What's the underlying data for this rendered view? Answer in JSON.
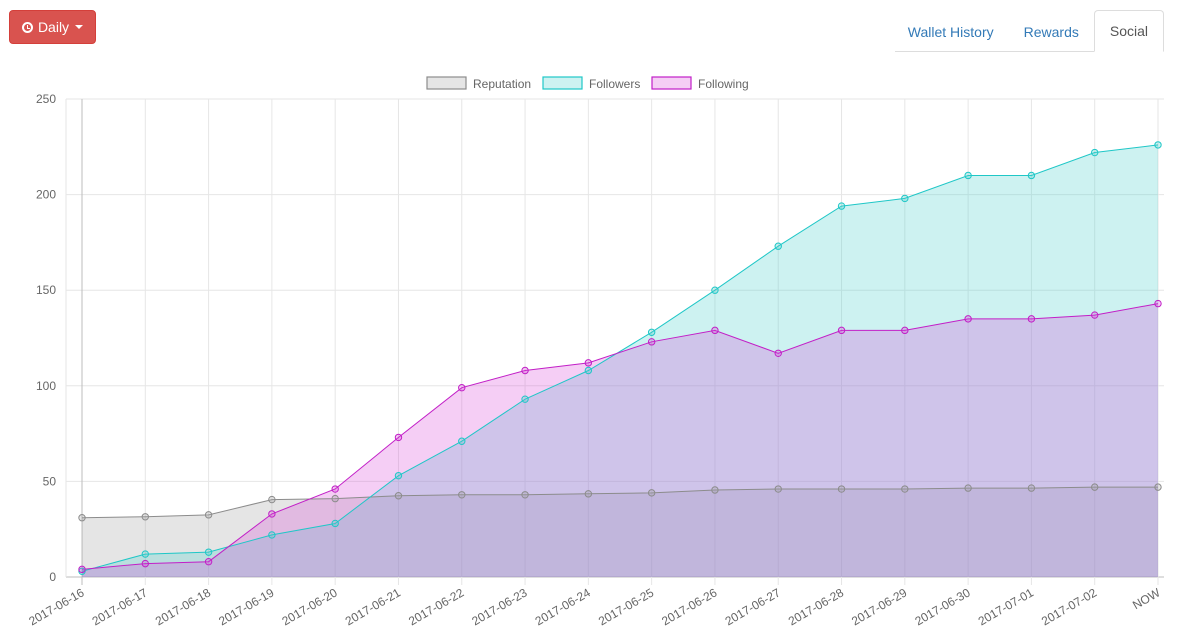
{
  "controls": {
    "period_label": "Daily",
    "period_icon": "clock-icon",
    "tabs": [
      {
        "label": "Wallet History",
        "active": false
      },
      {
        "label": "Rewards",
        "active": false
      },
      {
        "label": "Social",
        "active": true
      }
    ]
  },
  "chart_data": {
    "type": "area",
    "categories": [
      "2017-06-16",
      "2017-06-17",
      "2017-06-18",
      "2017-06-19",
      "2017-06-20",
      "2017-06-21",
      "2017-06-22",
      "2017-06-23",
      "2017-06-24",
      "2017-06-25",
      "2017-06-26",
      "2017-06-27",
      "2017-06-28",
      "2017-06-29",
      "2017-06-30",
      "2017-07-01",
      "2017-07-02",
      "NOW"
    ],
    "ylim": [
      0,
      250
    ],
    "yticks": [
      0,
      50,
      100,
      150,
      200,
      250
    ],
    "grid": true,
    "legend_position": "top",
    "series": [
      {
        "name": "Reputation",
        "color": "#8c8c8c",
        "fill": "rgba(160,160,160,0.28)",
        "values": [
          31,
          31.5,
          32.5,
          40.5,
          41,
          42.5,
          43,
          43,
          43.5,
          44,
          45.5,
          46,
          46,
          46,
          46.5,
          46.5,
          47,
          47
        ]
      },
      {
        "name": "Followers",
        "color": "#1fc7c7",
        "fill": "rgba(75,210,205,0.28)",
        "values": [
          3,
          12,
          13,
          22,
          28,
          53,
          71,
          93,
          108,
          128,
          150,
          173,
          194,
          198,
          210,
          210,
          222,
          226
        ]
      },
      {
        "name": "Following",
        "color": "#c21fc7",
        "fill": "rgba(215,60,215,0.25)",
        "values": [
          4,
          7,
          8,
          33,
          46,
          73,
          99,
          108,
          112,
          123,
          129,
          117,
          129,
          129,
          135,
          135,
          137,
          143
        ]
      }
    ]
  }
}
